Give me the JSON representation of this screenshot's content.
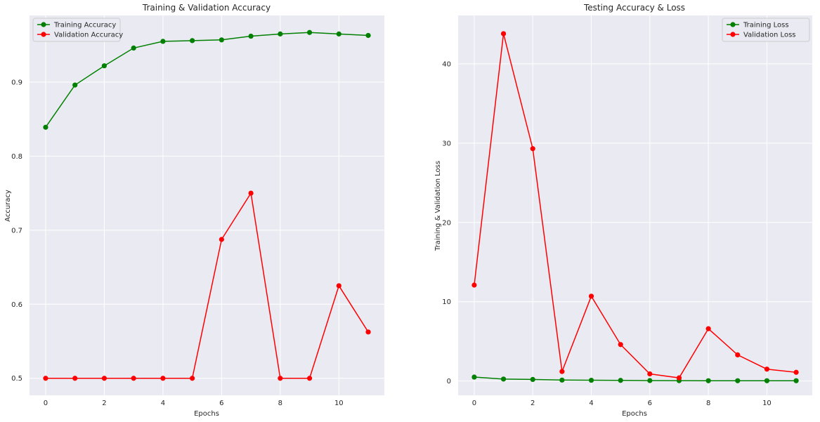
{
  "chart_data": [
    {
      "type": "line",
      "title": "Training & Validation Accuracy",
      "xlabel": "Epochs",
      "ylabel": "Accuracy",
      "x": [
        0,
        1,
        2,
        3,
        4,
        5,
        6,
        7,
        8,
        9,
        10,
        11
      ],
      "xlim": [
        -0.55,
        11.55
      ],
      "ylim": [
        0.477,
        0.99
      ],
      "xticks": [
        0,
        2,
        4,
        6,
        8,
        10
      ],
      "yticks": [
        0.5,
        0.6,
        0.7,
        0.8,
        0.9
      ],
      "ytick_format": 1,
      "grid": true,
      "legend_position": "top-left",
      "series": [
        {
          "name": "Training Accuracy",
          "color": "#008000",
          "values": [
            0.839,
            0.896,
            0.922,
            0.946,
            0.955,
            0.956,
            0.957,
            0.962,
            0.965,
            0.967,
            0.965,
            0.963
          ]
        },
        {
          "name": "Validation Accuracy",
          "color": "#ff0000",
          "values": [
            0.5,
            0.5,
            0.5,
            0.5,
            0.5,
            0.5,
            0.6875,
            0.75,
            0.5,
            0.5,
            0.625,
            0.5625
          ]
        }
      ]
    },
    {
      "type": "line",
      "title": "Testing Accuracy & Loss",
      "xlabel": "Epochs",
      "ylabel": "Training & Validation Loss",
      "x": [
        0,
        1,
        2,
        3,
        4,
        5,
        6,
        7,
        8,
        9,
        10,
        11
      ],
      "xlim": [
        -0.55,
        11.55
      ],
      "ylim": [
        -1.8,
        46.1
      ],
      "xticks": [
        0,
        2,
        4,
        6,
        8,
        10
      ],
      "yticks": [
        0,
        10,
        20,
        30,
        40
      ],
      "ytick_format": 0,
      "grid": true,
      "legend_position": "top-right",
      "series": [
        {
          "name": "Training Loss",
          "color": "#008000",
          "values": [
            0.5,
            0.25,
            0.2,
            0.12,
            0.1,
            0.08,
            0.06,
            0.05,
            0.04,
            0.04,
            0.04,
            0.04
          ]
        },
        {
          "name": "Validation Loss",
          "color": "#ff0000",
          "values": [
            12.1,
            43.8,
            29.3,
            1.2,
            10.7,
            4.6,
            0.9,
            0.4,
            6.6,
            3.3,
            1.5,
            1.1
          ]
        }
      ]
    }
  ]
}
